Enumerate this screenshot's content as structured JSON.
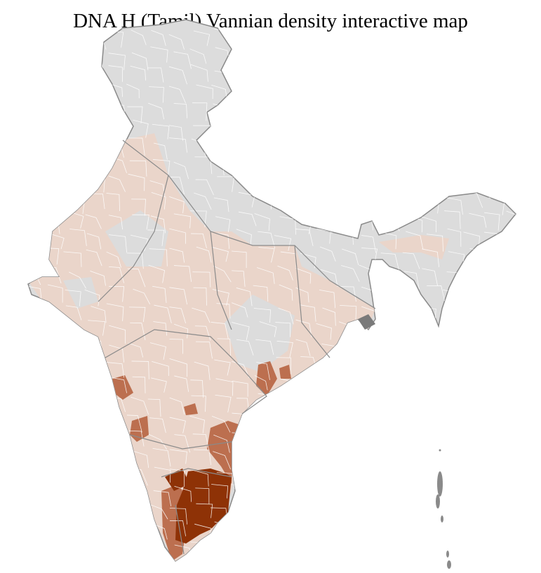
{
  "title": "DNA H (Tamil) Vannian density interactive map",
  "colors": {
    "no_data": "#dcdcdc",
    "low": "#ead5ca",
    "medium": "#bc6f4f",
    "high": "#8e3206",
    "state_border": "#8a8a8a",
    "district_border": "#ffffff"
  },
  "regions": [
    {
      "name": "Tamil Nadu interior",
      "density": "high"
    },
    {
      "name": "Northern Tamil Nadu",
      "density": "high"
    },
    {
      "name": "Coastal Andhra south",
      "density": "medium"
    },
    {
      "name": "Odisha south",
      "density": "medium"
    },
    {
      "name": "Karnataka north",
      "density": "medium"
    },
    {
      "name": "Maharashtra patch",
      "density": "medium"
    },
    {
      "name": "Kerala",
      "density": "medium"
    },
    {
      "name": "Western and central India",
      "density": "low"
    },
    {
      "name": "Northern and eastern India",
      "density": "no_data"
    }
  ]
}
